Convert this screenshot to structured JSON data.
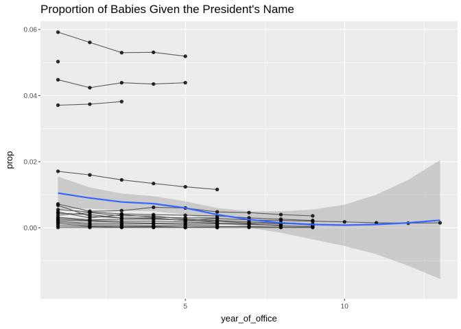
{
  "chart_data": {
    "type": "line",
    "title": "Proportion of Babies Given the President's Name",
    "xlabel": "year_of_office",
    "ylabel": "prop",
    "xlim": [
      0.45,
      13.55
    ],
    "ylim": [
      -0.0215,
      0.0625
    ],
    "x_ticks": [
      5,
      10
    ],
    "x_tick_labels": [
      "5",
      "10"
    ],
    "y_ticks": [
      0.0,
      0.02,
      0.04,
      0.06
    ],
    "y_tick_labels": [
      "0.00",
      "0.02",
      "0.04",
      "0.06"
    ],
    "grid": true,
    "legend": "none",
    "series": [
      {
        "values": [
          [
            1,
            0.0592
          ],
          [
            2,
            0.0561
          ],
          [
            3,
            0.053
          ],
          [
            4,
            0.0531
          ],
          [
            5,
            0.0519
          ]
        ]
      },
      {
        "values": [
          [
            1,
            0.0503
          ]
        ]
      },
      {
        "values": [
          [
            1,
            0.0448
          ],
          [
            2,
            0.0424
          ],
          [
            3,
            0.0439
          ],
          [
            4,
            0.0435
          ],
          [
            5,
            0.0439
          ]
        ]
      },
      {
        "values": [
          [
            1,
            0.0371
          ],
          [
            2,
            0.0374
          ],
          [
            3,
            0.0382
          ]
        ]
      },
      {
        "values": [
          [
            1,
            0.0171
          ],
          [
            2,
            0.016
          ],
          [
            3,
            0.0145
          ],
          [
            4,
            0.0134
          ],
          [
            5,
            0.0124
          ],
          [
            6,
            0.0116
          ]
        ]
      },
      {
        "values": [
          [
            1,
            0.0072
          ],
          [
            2,
            0.005
          ],
          [
            3,
            0.0052
          ],
          [
            4,
            0.0062
          ],
          [
            5,
            0.006
          ],
          [
            6,
            0.0048
          ],
          [
            7,
            0.0046
          ],
          [
            8,
            0.004
          ],
          [
            9,
            0.0036
          ]
        ]
      },
      {
        "values": [
          [
            1,
            0.0068
          ],
          [
            2,
            0.0035
          ],
          [
            3,
            0.003
          ],
          [
            4,
            0.0028
          ],
          [
            5,
            0.0022
          ],
          [
            6,
            0.0028
          ],
          [
            7,
            0.0024
          ],
          [
            8,
            0.0022
          ],
          [
            9,
            0.002
          ],
          [
            10,
            0.0018
          ],
          [
            11,
            0.0015
          ],
          [
            12,
            0.0014
          ],
          [
            13,
            0.0015
          ]
        ]
      },
      {
        "values": [
          [
            1,
            0.0055
          ],
          [
            2,
            0.0048
          ],
          [
            3,
            0.0042
          ],
          [
            4,
            0.004
          ],
          [
            5,
            0.0038
          ],
          [
            6,
            0.0036
          ],
          [
            7,
            0.003
          ],
          [
            8,
            0.0026
          ],
          [
            9,
            0.0022
          ]
        ]
      },
      {
        "values": [
          [
            1,
            0.0048
          ],
          [
            2,
            0.003
          ],
          [
            3,
            0.004
          ],
          [
            4,
            0.0032
          ],
          [
            5,
            0.003
          ],
          [
            6,
            0.003
          ]
        ]
      },
      {
        "values": [
          [
            1,
            0.0044
          ],
          [
            2,
            0.004
          ],
          [
            3,
            0.003
          ],
          [
            4,
            0.003
          ],
          [
            5,
            0.0022
          ],
          [
            6,
            0.002
          ],
          [
            7,
            0.0014
          ],
          [
            8,
            0.0012
          ],
          [
            9,
            0.0012
          ]
        ]
      },
      {
        "values": [
          [
            1,
            0.0038
          ],
          [
            2,
            0.0046
          ],
          [
            3,
            0.0036
          ],
          [
            4,
            0.0036
          ],
          [
            5,
            0.0026
          ],
          [
            6,
            0.0022
          ],
          [
            7,
            0.0018
          ],
          [
            8,
            0.0014
          ],
          [
            9,
            0.0008
          ]
        ]
      },
      {
        "values": [
          [
            1,
            0.0032
          ],
          [
            2,
            0.0024
          ],
          [
            3,
            0.0026
          ],
          [
            4,
            0.0026
          ],
          [
            5,
            0.0024
          ],
          [
            6,
            0.0016
          ]
        ]
      },
      {
        "values": [
          [
            1,
            0.0028
          ],
          [
            2,
            0.0022
          ],
          [
            3,
            0.002
          ],
          [
            4,
            0.002
          ],
          [
            5,
            0.0018
          ],
          [
            6,
            0.0014
          ],
          [
            7,
            0.0012
          ],
          [
            8,
            0.0006
          ],
          [
            9,
            0.0004
          ]
        ]
      },
      {
        "values": [
          [
            1,
            0.0024
          ],
          [
            2,
            0.002
          ],
          [
            3,
            0.0016
          ],
          [
            4,
            0.0014
          ],
          [
            5,
            0.0014
          ],
          [
            6,
            0.0012
          ],
          [
            7,
            0.001
          ],
          [
            8,
            0.0008
          ]
        ]
      },
      {
        "values": [
          [
            1,
            0.002
          ],
          [
            2,
            0.0014
          ],
          [
            3,
            0.0012
          ],
          [
            4,
            0.0012
          ],
          [
            5,
            0.001
          ],
          [
            6,
            0.0008
          ]
        ]
      },
      {
        "values": [
          [
            1,
            0.0016
          ],
          [
            2,
            0.001
          ],
          [
            3,
            0.0008
          ],
          [
            4,
            0.0006
          ],
          [
            5,
            0.0006
          ],
          [
            6,
            0.0004
          ],
          [
            7,
            0.0004
          ],
          [
            8,
            0.0002
          ],
          [
            9,
            0.0002
          ]
        ]
      },
      {
        "values": [
          [
            1,
            0.0012
          ],
          [
            2,
            0.0006
          ],
          [
            3,
            0.0004
          ],
          [
            4,
            0.0004
          ],
          [
            5,
            0.0002
          ],
          [
            6,
            0.0002
          ]
        ]
      },
      {
        "values": [
          [
            1,
            0.0006
          ],
          [
            2,
            0.0004
          ],
          [
            3,
            0.0002
          ],
          [
            4,
            0.0002
          ],
          [
            5,
            0.0001
          ],
          [
            6,
            0.0001
          ],
          [
            7,
            0.0001
          ],
          [
            8,
            0.0001
          ],
          [
            9,
            0.0001
          ]
        ]
      },
      {
        "values": [
          [
            1,
            0.0001
          ],
          [
            2,
            0.0001
          ],
          [
            3,
            0.0001
          ],
          [
            4,
            0.0001
          ],
          [
            5,
            0.0001
          ],
          [
            6,
            0.0001
          ]
        ]
      }
    ],
    "smooth": {
      "x": [
        1,
        2,
        3,
        4,
        5,
        6,
        7,
        8,
        9,
        10,
        11,
        12,
        13
      ],
      "y": [
        0.0105,
        0.009,
        0.0078,
        0.0073,
        0.006,
        0.004,
        0.0025,
        0.0015,
        0.001,
        0.0008,
        0.001,
        0.0015,
        0.0023
      ],
      "lower": [
        0.0055,
        0.0058,
        0.0052,
        0.005,
        0.004,
        0.002,
        0.0,
        -0.0015,
        -0.0035,
        -0.0055,
        -0.008,
        -0.0115,
        -0.0155
      ],
      "upper": [
        0.0155,
        0.0122,
        0.0104,
        0.0096,
        0.008,
        0.006,
        0.005,
        0.005,
        0.0055,
        0.007,
        0.01,
        0.0145,
        0.0205
      ]
    },
    "colors": {
      "panel": "#ebebeb",
      "grid_major": "#ffffff",
      "line": "#595959",
      "point": "#000000",
      "smooth": "#3366ff",
      "ribbon": "#999999"
    }
  }
}
